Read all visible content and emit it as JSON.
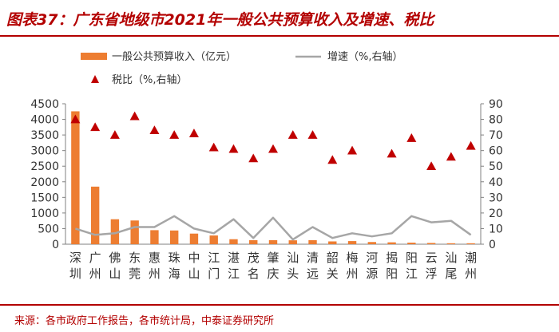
{
  "header": {
    "title": "图表37：广东省地级市2021年一般公共预算收入及增速、税比"
  },
  "footer": {
    "source": "来源：各市政府工作报告，各市统计局，中泰证券研究所"
  },
  "colors": {
    "accent": "#b30000",
    "bar": "#ed7d31",
    "line": "#a6a6a6",
    "marker": "#c00000",
    "axis_text": "#333333"
  },
  "chart_data": {
    "type": "bar",
    "categories": [
      "深圳",
      "广州",
      "佛山",
      "东莞",
      "惠州",
      "珠海",
      "中山",
      "江门",
      "湛江",
      "茂名",
      "肇庆",
      "汕头",
      "清远",
      "韶关",
      "梅州",
      "河源",
      "揭阳",
      "阳江",
      "云浮",
      "汕尾",
      "潮州"
    ],
    "series": [
      {
        "name": "一般公共预算收入（亿元）",
        "type": "bar",
        "axis": "left",
        "values": [
          4258,
          1845,
          800,
          760,
          450,
          440,
          340,
          280,
          160,
          130,
          130,
          125,
          130,
          90,
          100,
          70,
          60,
          50,
          40,
          30,
          30
        ]
      },
      {
        "name": "增速（%,右轴）",
        "type": "line",
        "axis": "right",
        "values": [
          10,
          6,
          7,
          11,
          11,
          18,
          10,
          7,
          16,
          4,
          17,
          3,
          11,
          4,
          7,
          5,
          7,
          18,
          14,
          15,
          6
        ]
      },
      {
        "name": "税比（%,右轴）",
        "type": "scatter",
        "axis": "right",
        "values": [
          80,
          75,
          70,
          82,
          73,
          70,
          71,
          62,
          61,
          55,
          61,
          70,
          70,
          54,
          60,
          null,
          58,
          68,
          50,
          56,
          63
        ]
      }
    ],
    "y_left": {
      "min": 0,
      "max": 4500,
      "ticks": [
        "0",
        "500",
        "1000",
        "1500",
        "2000",
        "2500",
        "3000",
        "3500",
        "4000",
        "4500"
      ]
    },
    "y_right": {
      "min": 0,
      "max": 90,
      "ticks": [
        "0",
        "10",
        "20",
        "30",
        "40",
        "50",
        "60",
        "70",
        "80",
        "90"
      ]
    },
    "grid": false,
    "legend_placement": "top"
  }
}
